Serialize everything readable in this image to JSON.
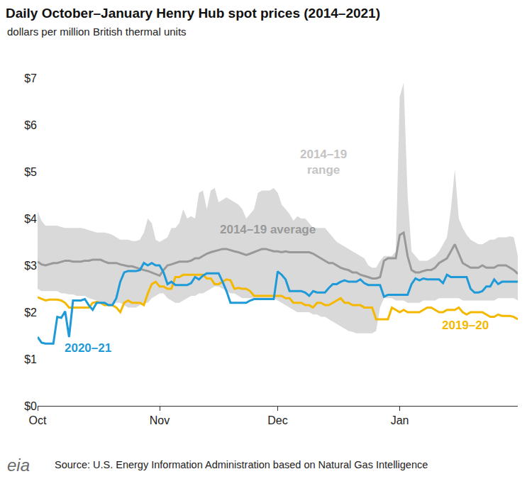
{
  "chart_data": {
    "type": "line",
    "title": "Daily October–January Henry Hub spot prices (2014–2021)",
    "subtitle": "dollars per million British thermal units",
    "source": "Source: U.S. Energy Information Administration based on Natural Gas Intelligence",
    "logo_text": "eia",
    "categories": [
      "Oct",
      null,
      null,
      null,
      null,
      null,
      null,
      null,
      null,
      null,
      null,
      null,
      null,
      null,
      null,
      null,
      null,
      null,
      null,
      null,
      null,
      null,
      null,
      null,
      null,
      null,
      null,
      null,
      null,
      null,
      null,
      "Nov",
      null,
      null,
      null,
      null,
      null,
      null,
      null,
      null,
      null,
      null,
      null,
      null,
      null,
      null,
      null,
      null,
      null,
      null,
      null,
      null,
      null,
      null,
      null,
      null,
      null,
      null,
      null,
      null,
      null,
      "Dec",
      null,
      null,
      null,
      null,
      null,
      null,
      null,
      null,
      null,
      null,
      null,
      null,
      null,
      null,
      null,
      null,
      null,
      null,
      null,
      null,
      null,
      null,
      null,
      null,
      null,
      null,
      null,
      null,
      null,
      null,
      "Jan",
      null,
      null,
      null,
      null,
      null,
      null,
      null,
      null,
      null,
      null,
      null,
      null,
      null,
      null,
      null,
      null,
      null,
      null,
      null,
      null,
      null,
      null,
      null,
      null,
      null,
      null,
      null,
      null,
      null,
      null
    ],
    "ylim": [
      0,
      7
    ],
    "yticks": [
      {
        "value": 0,
        "label": "$0"
      },
      {
        "value": 1,
        "label": "$1"
      },
      {
        "value": 2,
        "label": "$2"
      },
      {
        "value": 3,
        "label": "$3"
      },
      {
        "value": 4,
        "label": "$4"
      },
      {
        "value": 5,
        "label": "$5"
      },
      {
        "value": 6,
        "label": "$6"
      },
      {
        "value": 7,
        "label": "$7"
      }
    ],
    "grid": false,
    "series": [
      {
        "name": "2014–19 range",
        "type": "range",
        "color": "#d9d9d9",
        "low": [
          2.5,
          2.45,
          2.45,
          2.45,
          2.45,
          2.45,
          2.4,
          2.4,
          2.38,
          2.38,
          2.35,
          2.35,
          2.35,
          2.3,
          2.28,
          2.25,
          2.2,
          2.15,
          2.15,
          2.15,
          2.2,
          2.2,
          2.15,
          2.1,
          2.1,
          2.1,
          2.15,
          2.2,
          2.2,
          2.3,
          2.35,
          2.4,
          2.4,
          2.3,
          2.25,
          2.2,
          2.2,
          2.25,
          2.3,
          2.35,
          2.35,
          2.4,
          2.4,
          2.45,
          2.5,
          2.55,
          2.55,
          2.5,
          2.45,
          2.4,
          2.4,
          2.35,
          2.3,
          2.3,
          2.3,
          2.3,
          2.3,
          2.3,
          2.3,
          2.3,
          2.3,
          2.25,
          2.2,
          2.15,
          2.1,
          2.05,
          2.0,
          2.0,
          2.0,
          2.0,
          1.95,
          1.95,
          1.9,
          1.9,
          1.85,
          1.8,
          1.75,
          1.7,
          1.65,
          1.6,
          1.58,
          1.55,
          1.55,
          1.55,
          1.55,
          1.55,
          1.6,
          2.1,
          2.3,
          2.3,
          2.3,
          2.25,
          2.25,
          2.25,
          2.2,
          2.2,
          2.2,
          2.2,
          2.25,
          2.25,
          2.25,
          2.25,
          2.3,
          2.3,
          2.3,
          2.3,
          2.3,
          2.3,
          2.25,
          2.25,
          2.25,
          2.25,
          2.25,
          2.25,
          2.25,
          2.25,
          2.25,
          2.3,
          2.3,
          2.3,
          2.3,
          2.3,
          2.25
        ],
        "high": [
          4.15,
          3.95,
          3.85,
          3.85,
          3.85,
          3.85,
          3.82,
          3.8,
          3.8,
          3.8,
          3.8,
          3.8,
          3.78,
          3.75,
          3.72,
          3.7,
          3.7,
          3.7,
          3.68,
          3.65,
          3.6,
          3.55,
          3.55,
          3.55,
          3.52,
          3.52,
          3.55,
          3.7,
          4.0,
          3.9,
          3.55,
          3.5,
          3.55,
          3.6,
          3.8,
          3.8,
          3.9,
          4.2,
          4.0,
          4.05,
          4.0,
          4.55,
          4.6,
          4.2,
          4.6,
          4.65,
          4.35,
          4.4,
          4.45,
          4.4,
          4.35,
          4.3,
          4.2,
          4.0,
          4.1,
          4.2,
          4.55,
          4.6,
          4.6,
          4.6,
          4.65,
          4.55,
          4.3,
          4.2,
          4.1,
          3.95,
          4.05,
          4.0,
          4.0,
          3.9,
          3.8,
          3.8,
          3.8,
          3.8,
          3.7,
          3.6,
          3.5,
          3.45,
          3.4,
          3.35,
          3.3,
          3.25,
          3.2,
          3.15,
          3.0,
          2.95,
          2.95,
          3.1,
          3.2,
          3.2,
          3.2,
          3.3,
          6.6,
          6.9,
          4.5,
          3.3,
          3.2,
          3.1,
          3.1,
          3.1,
          3.15,
          3.2,
          3.3,
          3.45,
          3.6,
          4.2,
          5.05,
          4.0,
          3.8,
          3.65,
          3.55,
          3.5,
          3.45,
          3.45,
          3.5,
          3.55,
          3.55,
          3.6,
          3.6,
          3.6,
          3.62,
          3.6,
          3.2
        ]
      },
      {
        "name": "2014–19 average",
        "type": "line",
        "color": "#999999",
        "values": [
          3.08,
          3.02,
          3.0,
          3.02,
          3.05,
          3.05,
          3.07,
          3.1,
          3.1,
          3.08,
          3.08,
          3.08,
          3.1,
          3.1,
          3.12,
          3.12,
          3.12,
          3.08,
          3.05,
          3.05,
          3.05,
          3.02,
          3.0,
          2.98,
          2.98,
          2.95,
          2.92,
          2.9,
          2.88,
          2.85,
          2.82,
          2.78,
          2.9,
          3.0,
          3.02,
          3.05,
          3.08,
          3.08,
          3.08,
          3.1,
          3.15,
          3.15,
          3.2,
          3.25,
          3.28,
          3.3,
          3.32,
          3.35,
          3.35,
          3.32,
          3.3,
          3.28,
          3.25,
          3.22,
          3.25,
          3.28,
          3.32,
          3.35,
          3.35,
          3.32,
          3.3,
          3.3,
          3.28,
          3.3,
          3.28,
          3.28,
          3.28,
          3.28,
          3.28,
          3.28,
          3.25,
          3.2,
          3.15,
          3.1,
          3.05,
          3.05,
          3.0,
          2.95,
          2.92,
          2.9,
          2.85,
          2.85,
          2.8,
          2.78,
          2.75,
          2.72,
          2.72,
          2.75,
          3.1,
          3.15,
          3.15,
          3.15,
          3.65,
          3.7,
          3.2,
          2.9,
          2.85,
          2.85,
          2.88,
          2.9,
          2.9,
          2.95,
          3.05,
          3.1,
          3.15,
          3.3,
          3.45,
          3.25,
          3.05,
          3.0,
          2.95,
          2.95,
          2.95,
          3.0,
          2.95,
          2.95,
          2.95,
          3.0,
          3.0,
          3.0,
          2.95,
          2.9,
          2.82
        ]
      },
      {
        "name": "2019–20",
        "type": "line",
        "color": "#f5b800",
        "values": [
          2.32,
          2.28,
          2.25,
          2.27,
          2.27,
          2.27,
          2.25,
          2.2,
          2.1,
          2.1,
          2.1,
          2.1,
          2.1,
          2.1,
          2.2,
          2.22,
          2.2,
          2.15,
          2.15,
          2.15,
          2.1,
          2.0,
          2.2,
          2.25,
          2.2,
          2.2,
          2.2,
          2.15,
          2.4,
          2.6,
          2.65,
          2.55,
          2.55,
          2.5,
          2.5,
          2.75,
          2.75,
          2.8,
          2.8,
          2.8,
          2.8,
          2.8,
          2.8,
          2.72,
          2.72,
          2.6,
          2.6,
          2.65,
          2.7,
          2.68,
          2.5,
          2.52,
          2.5,
          2.5,
          2.45,
          2.35,
          2.35,
          2.35,
          2.35,
          2.35,
          2.35,
          2.35,
          2.35,
          2.3,
          2.3,
          2.2,
          2.2,
          2.2,
          2.15,
          2.15,
          2.1,
          2.2,
          2.2,
          2.15,
          2.15,
          2.2,
          2.25,
          2.3,
          2.2,
          2.2,
          2.15,
          2.15,
          2.15,
          2.1,
          2.1,
          2.1,
          1.85,
          1.85,
          1.85,
          1.85,
          2.1,
          2.05,
          2.0,
          2.05,
          2.0,
          2.0,
          2.0,
          2.0,
          2.05,
          2.1,
          2.1,
          2.05,
          2.0,
          2.0,
          2.05,
          2.05,
          2.05,
          2.1,
          2.0,
          1.95,
          2.0,
          2.0,
          2.0,
          2.0,
          1.95,
          1.9,
          1.9,
          1.95,
          1.92,
          1.92,
          1.92,
          1.9,
          1.85
        ]
      },
      {
        "name": "2020–21",
        "type": "line",
        "color": "#1f9ad8",
        "values": [
          1.47,
          1.35,
          1.33,
          1.33,
          1.33,
          1.9,
          1.88,
          2.02,
          1.47,
          2.25,
          2.25,
          2.25,
          2.28,
          2.15,
          2.05,
          2.2,
          2.2,
          2.2,
          2.15,
          2.15,
          2.3,
          2.65,
          2.85,
          2.88,
          2.88,
          2.88,
          2.9,
          3.05,
          3.0,
          3.05,
          3.0,
          3.0,
          2.85,
          2.6,
          2.65,
          2.58,
          2.58,
          2.58,
          2.58,
          2.62,
          2.75,
          2.7,
          2.78,
          2.83,
          2.83,
          2.83,
          2.83,
          2.65,
          2.45,
          2.2,
          2.2,
          2.2,
          2.2,
          2.2,
          2.25,
          2.28,
          2.28,
          2.28,
          2.28,
          2.28,
          2.28,
          2.87,
          2.8,
          2.7,
          2.45,
          2.45,
          2.45,
          2.45,
          2.42,
          2.35,
          2.45,
          2.42,
          2.42,
          2.42,
          2.52,
          2.6,
          2.6,
          2.65,
          2.68,
          2.65,
          2.65,
          2.65,
          2.7,
          2.62,
          2.58,
          2.58,
          2.58,
          2.58,
          2.33,
          2.37,
          2.37,
          2.37,
          2.37,
          2.37,
          2.37,
          2.6,
          2.72,
          2.68,
          2.72,
          2.7,
          2.7,
          2.7,
          2.7,
          2.62,
          2.8,
          2.75,
          2.75,
          2.75,
          2.75,
          2.75,
          2.5,
          2.42,
          2.42,
          2.45,
          2.55,
          2.55,
          2.7,
          2.6,
          2.65,
          2.65,
          2.65,
          2.65,
          2.65
        ]
      }
    ]
  }
}
